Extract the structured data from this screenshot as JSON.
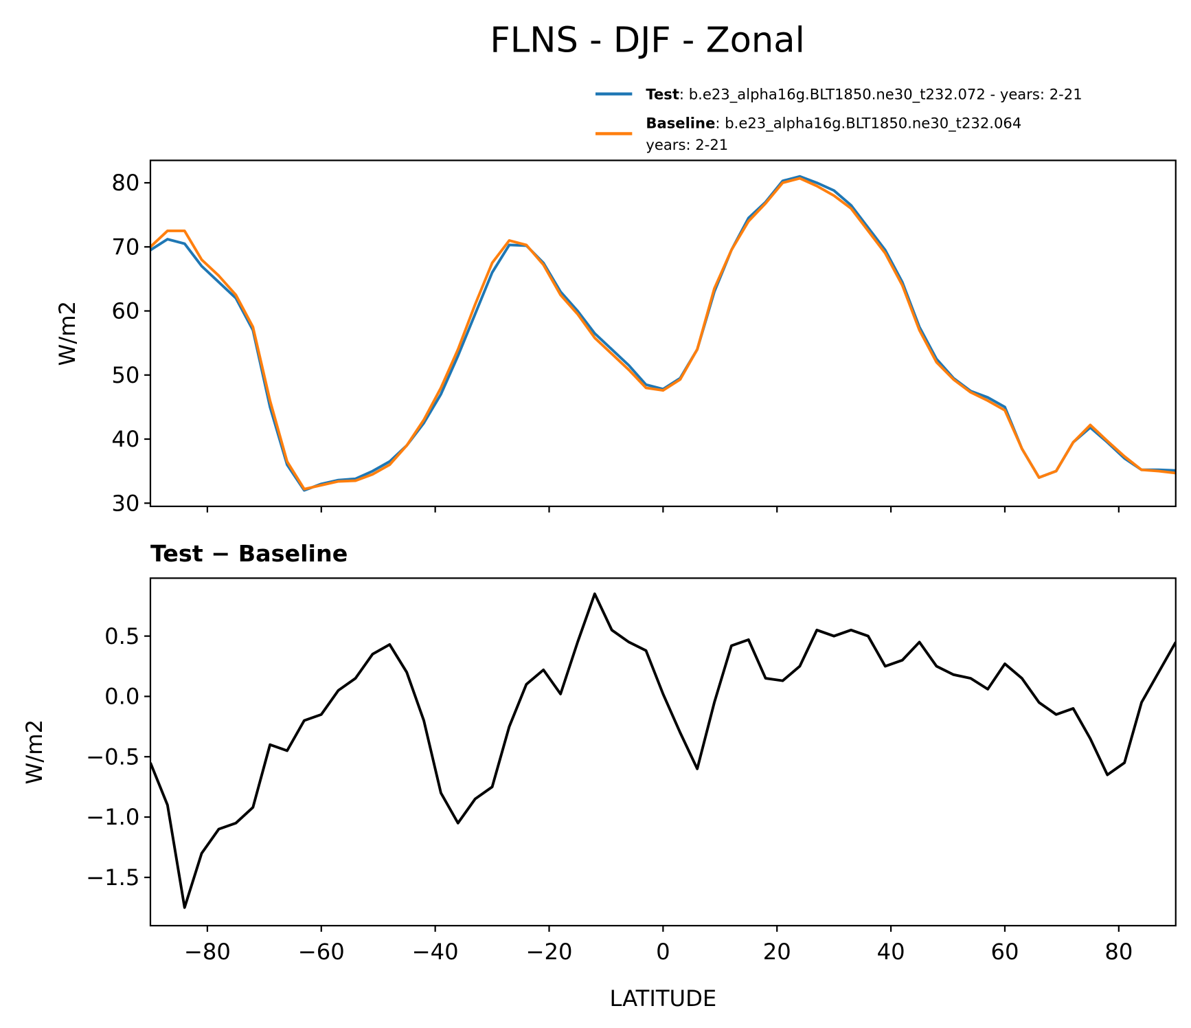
{
  "title": "FLNS - DJF - Zonal",
  "chart_data": [
    {
      "type": "line",
      "ylabel": "W/m2",
      "x": [
        -90,
        -87,
        -84,
        -81,
        -78,
        -75,
        -72,
        -69,
        -66,
        -63,
        -60,
        -57,
        -54,
        -51,
        -48,
        -45,
        -42,
        -39,
        -36,
        -33,
        -30,
        -27,
        -24,
        -21,
        -18,
        -15,
        -12,
        -9,
        -6,
        -3,
        0,
        3,
        6,
        9,
        12,
        15,
        18,
        21,
        24,
        27,
        30,
        33,
        36,
        39,
        42,
        45,
        48,
        51,
        54,
        57,
        60,
        63,
        66,
        69,
        72,
        75,
        78,
        81,
        84,
        87,
        90
      ],
      "series": [
        {
          "name": "Test",
          "description": [
            ": b.e23_alpha16g.BLT1850.ne30_t232.072 - years: 2-21"
          ],
          "color": "#1f77b4",
          "values": [
            69.5,
            71.2,
            70.5,
            67,
            64.5,
            62,
            57,
            45,
            36,
            32,
            33,
            33.6,
            33.8,
            35,
            36.5,
            39,
            42.5,
            47,
            53,
            59.5,
            66,
            70.3,
            70.2,
            67.5,
            63,
            60,
            56.5,
            54,
            51.5,
            48.5,
            47.8,
            49.5,
            54,
            63,
            69.5,
            74.5,
            77,
            80.3,
            81,
            80,
            78.8,
            76.5,
            73,
            69.5,
            64.5,
            57.5,
            52.5,
            49.5,
            47.5,
            46.5,
            45,
            38.5,
            34,
            35,
            39.5,
            41.8,
            39.5,
            37,
            35.2,
            35.2,
            35.1
          ]
        },
        {
          "name": "Baseline",
          "description": [
            ": b.e23_alpha16g.BLT1850.ne30_t232.064",
            "years: 2-21"
          ],
          "color": "#ff7f0e",
          "values": [
            70,
            72.5,
            72.5,
            68,
            65.5,
            62.5,
            57.5,
            46,
            36.5,
            32.2,
            32.8,
            33.4,
            33.5,
            34.5,
            36,
            39,
            43,
            48,
            54,
            61,
            67.5,
            71,
            70.3,
            67.2,
            62.5,
            59.5,
            55.8,
            53.3,
            50.8,
            48,
            47.6,
            49.3,
            54,
            63.5,
            69.5,
            74,
            76.8,
            80,
            80.7,
            79.5,
            78,
            76,
            72.5,
            69,
            64,
            57,
            52,
            49.3,
            47.3,
            46,
            44.5,
            38.5,
            34,
            35,
            39.5,
            42.2,
            39.7,
            37.3,
            35.2,
            35,
            34.7
          ]
        }
      ],
      "xlim": [
        -90,
        90
      ],
      "xticks": [
        -80,
        -60,
        -40,
        -20,
        0,
        20,
        40,
        60,
        80
      ],
      "ylim": [
        29.5,
        83.5
      ],
      "yticks": [
        30,
        40,
        50,
        60,
        70,
        80
      ]
    },
    {
      "type": "line",
      "title": "Test − Baseline",
      "xlabel": "LATITUDE",
      "ylabel": "W/m2",
      "x": [
        -90,
        -87,
        -84,
        -81,
        -78,
        -75,
        -72,
        -69,
        -66,
        -63,
        -60,
        -57,
        -54,
        -51,
        -48,
        -45,
        -42,
        -39,
        -36,
        -33,
        -30,
        -27,
        -24,
        -21,
        -18,
        -15,
        -12,
        -9,
        -6,
        -3,
        0,
        3,
        6,
        9,
        12,
        15,
        18,
        21,
        24,
        27,
        30,
        33,
        36,
        39,
        42,
        45,
        48,
        51,
        54,
        57,
        60,
        63,
        66,
        69,
        72,
        75,
        78,
        81,
        84,
        87,
        90
      ],
      "series": [
        {
          "color": "#000000",
          "values": [
            -0.55,
            -0.9,
            -1.75,
            -1.3,
            -1.1,
            -1.05,
            -0.92,
            -0.4,
            -0.45,
            -0.2,
            -0.15,
            0.05,
            0.15,
            0.35,
            0.43,
            0.2,
            -0.2,
            -0.8,
            -1.05,
            -0.85,
            -0.75,
            -0.25,
            0.1,
            0.22,
            0.02,
            0.45,
            0.85,
            0.55,
            0.45,
            0.38,
            0.02,
            -0.3,
            -0.6,
            -0.05,
            0.42,
            0.47,
            0.15,
            0.13,
            0.25,
            0.55,
            0.5,
            0.55,
            0.5,
            0.25,
            0.3,
            0.45,
            0.25,
            0.18,
            0.15,
            0.06,
            0.27,
            0.15,
            -0.05,
            -0.15,
            -0.1,
            -0.35,
            -0.65,
            -0.55,
            -0.05,
            0.2,
            0.45
          ]
        }
      ],
      "xlim": [
        -90,
        90
      ],
      "xticks": [
        {
          "value": -80,
          "label": "−80"
        },
        {
          "value": -60,
          "label": "−60"
        },
        {
          "value": -40,
          "label": "−40"
        },
        {
          "value": -20,
          "label": "−20"
        },
        0,
        20,
        40,
        60,
        80
      ],
      "ylim": [
        -1.9,
        0.98
      ],
      "yticks": [
        {
          "value": -1.5,
          "label": "−1.5"
        },
        {
          "value": -1,
          "label": "−1.0"
        },
        {
          "value": -0.5,
          "label": "−0.5"
        },
        {
          "value": 0,
          "label": "0.0"
        },
        0.5
      ]
    }
  ]
}
